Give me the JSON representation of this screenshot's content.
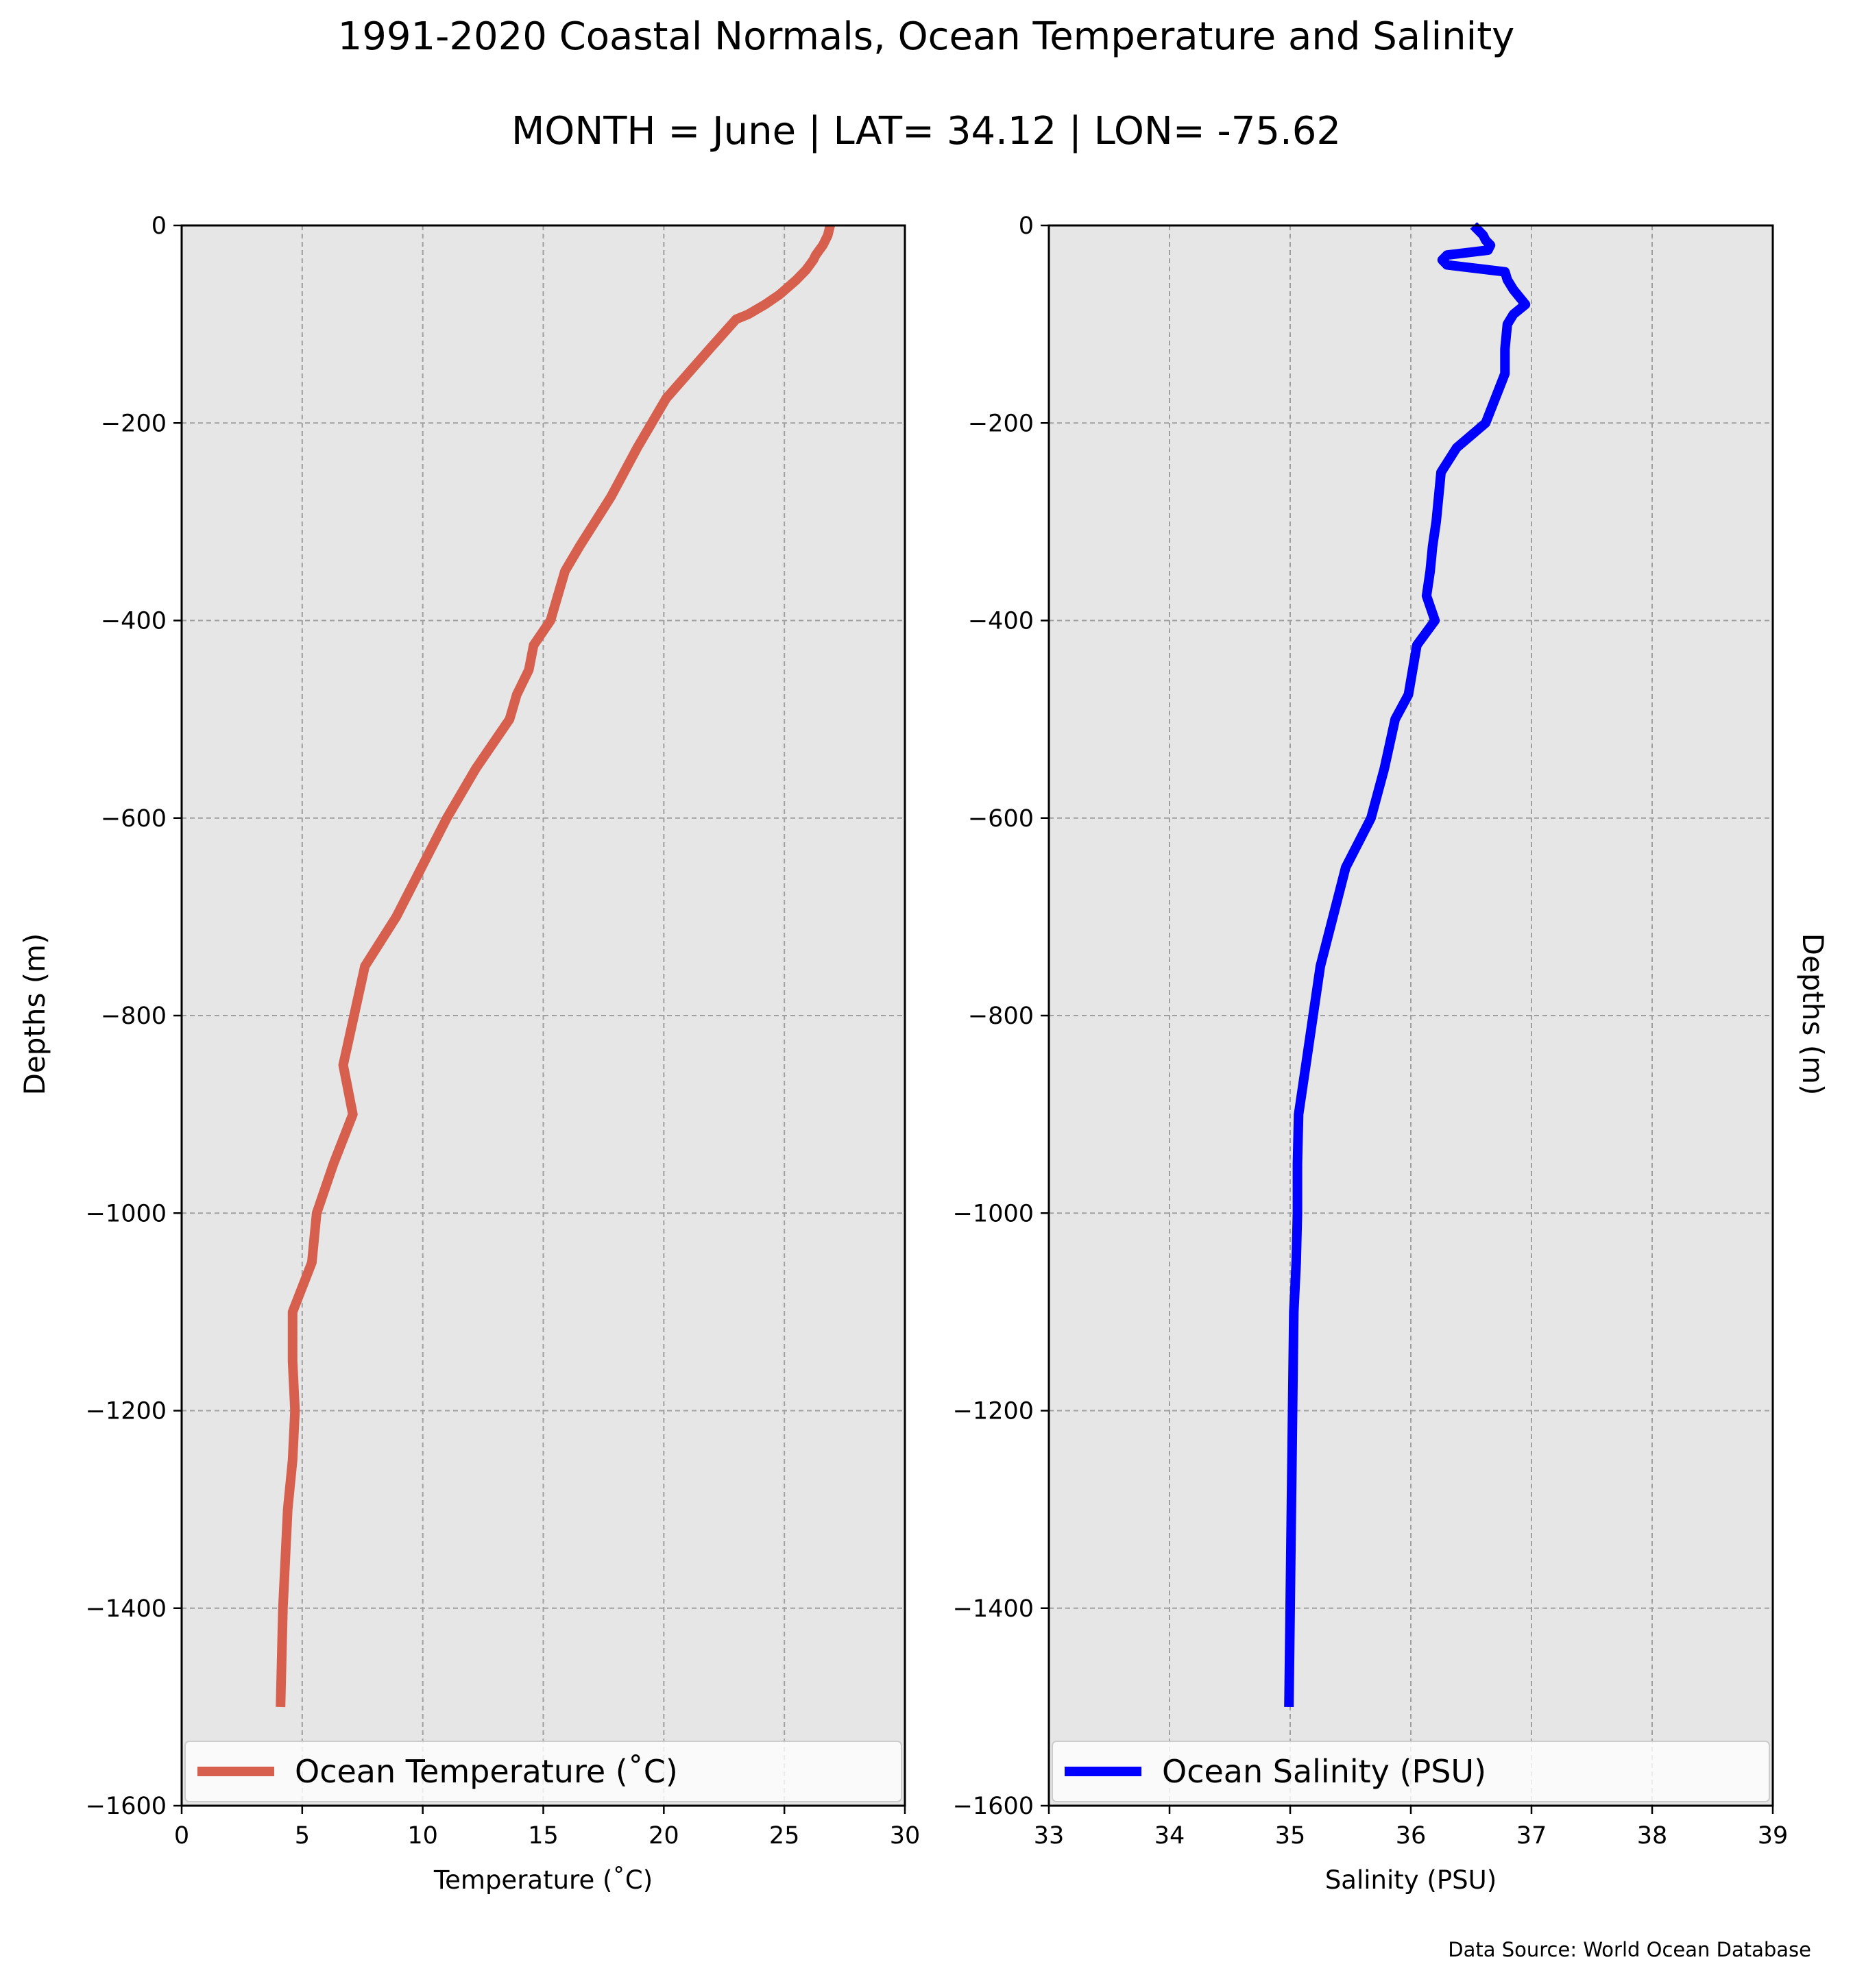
{
  "figure": {
    "title": "1991-2020 Coastal Normals, Ocean Temperature and Salinity",
    "subtitle": "MONTH = June | LAT= 34.12 | LON= -75.62",
    "source": "Data Source: World Ocean Database",
    "background_color": "#ffffff",
    "axes_facecolor": "#e6e6e6"
  },
  "chart_data": [
    {
      "type": "line",
      "xlabel": "Temperature ($^\\circ$C)",
      "ylabel": "Depths (m)",
      "xlim": [
        0,
        30
      ],
      "ylim": [
        -1600,
        0
      ],
      "xticks": [
        0,
        5,
        10,
        15,
        20,
        25,
        30
      ],
      "yticks": [
        0,
        -200,
        -400,
        -600,
        -800,
        -1000,
        -1200,
        -1400,
        -1600
      ],
      "grid": true,
      "legend": "lower center",
      "series": [
        {
          "name": "Ocean Temperature ($^\\circ$C)",
          "color": "#d6604d",
          "x": [
            26.9,
            26.8,
            26.6,
            26.3,
            26.2,
            25.9,
            25.5,
            24.8,
            24.2,
            23.5,
            23.0,
            21.9,
            21.0,
            20.1,
            18.9,
            17.8,
            16.5,
            15.9,
            15.3,
            14.6,
            14.4,
            13.9,
            13.6,
            12.2,
            11.0,
            8.9,
            7.6,
            6.7,
            7.1,
            6.3,
            5.6,
            5.4,
            4.6,
            4.6,
            4.7,
            4.6,
            4.4,
            4.3,
            4.2,
            4.1
          ],
          "y": [
            0,
            -10,
            -20,
            -30,
            -35,
            -45,
            -55,
            -70,
            -80,
            -90,
            -95,
            -125,
            -150,
            -175,
            -225,
            -275,
            -325,
            -350,
            -400,
            -425,
            -450,
            -475,
            -500,
            -550,
            -600,
            -700,
            -750,
            -850,
            -900,
            -950,
            -1000,
            -1050,
            -1100,
            -1150,
            -1200,
            -1250,
            -1300,
            -1350,
            -1400,
            -1500
          ]
        }
      ]
    },
    {
      "type": "line",
      "xlabel": "Salinity (PSU)",
      "ylabel": "Depths (m)",
      "xlim": [
        33,
        39
      ],
      "ylim": [
        -1600,
        0
      ],
      "xticks": [
        33,
        34,
        35,
        36,
        37,
        38,
        39
      ],
      "yticks": [
        0,
        -200,
        -400,
        -600,
        -800,
        -1000,
        -1200,
        -1400,
        -1600
      ],
      "grid": true,
      "legend": "lower center",
      "series": [
        {
          "name": "Ocean Salinity (PSU)",
          "color": "#0000ff",
          "x": [
            36.52,
            36.56,
            36.6,
            36.62,
            36.66,
            36.64,
            36.3,
            36.26,
            36.3,
            36.78,
            36.8,
            36.85,
            36.95,
            36.85,
            36.8,
            36.78,
            36.78,
            36.62,
            36.38,
            36.25,
            36.23,
            36.21,
            36.18,
            36.16,
            36.13,
            36.2,
            36.05,
            35.98,
            35.87,
            35.78,
            35.67,
            35.46,
            35.25,
            35.13,
            35.07,
            35.06,
            35.06,
            35.05,
            35.03,
            35.02,
            34.99
          ],
          "y": [
            0,
            -5,
            -10,
            -15,
            -20,
            -25,
            -30,
            -35,
            -40,
            -47,
            -55,
            -65,
            -80,
            -90,
            -100,
            -125,
            -150,
            -200,
            -225,
            -250,
            -275,
            -300,
            -325,
            -350,
            -375,
            -400,
            -425,
            -475,
            -500,
            -550,
            -600,
            -650,
            -750,
            -850,
            -900,
            -950,
            -1000,
            -1050,
            -1100,
            -1200,
            -1500
          ]
        }
      ]
    }
  ]
}
